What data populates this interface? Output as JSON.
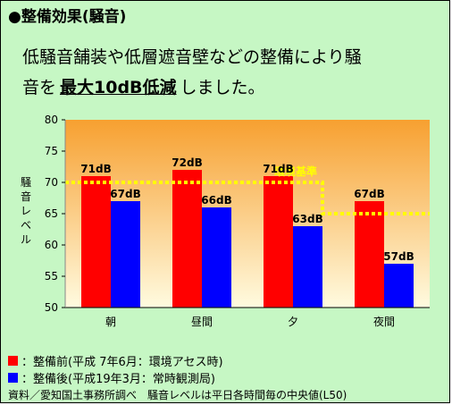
{
  "heading": "●整備効果(騒音)",
  "description": {
    "line1": "低騒音舗装や低層遮音壁などの整備により騒",
    "line2_prefix": "音を",
    "line2_highlight": "最大10dB低減",
    "line2_suffix": "しました。"
  },
  "legend": [
    {
      "label": "：整備前(平成 7年6月：環境アセス時)",
      "color": "#ff0000"
    },
    {
      "label": "：整備後(平成19年3月：常時観測局)",
      "color": "#0000ff"
    }
  ],
  "source": "資料／愛知国土事務所調べ　騒音レベルは平日各時間毎の中央値(L50)",
  "chart_data": {
    "type": "bar",
    "categories": [
      "朝",
      "昼間",
      "夕",
      "夜間"
    ],
    "series": [
      {
        "values": [
          71,
          72,
          71,
          67
        ],
        "color": "#ff0000",
        "labels": [
          "71dB",
          "72dB",
          "71dB",
          "67dB"
        ]
      },
      {
        "values": [
          67,
          66,
          63,
          57
        ],
        "color": "#0000ff",
        "labels": [
          "67dB",
          "66dB",
          "63dB",
          "57dB"
        ]
      }
    ],
    "ylabel": "騒音レベル",
    "ylim": [
      50,
      80
    ],
    "yticks": [
      50,
      55,
      60,
      65,
      70,
      75,
      80
    ],
    "grid": false,
    "background_gradient": [
      "#f7a030",
      "#fffbe0"
    ],
    "reference": {
      "label": "環境基準",
      "color": "#ffff00",
      "levels": [
        70,
        65
      ]
    }
  }
}
